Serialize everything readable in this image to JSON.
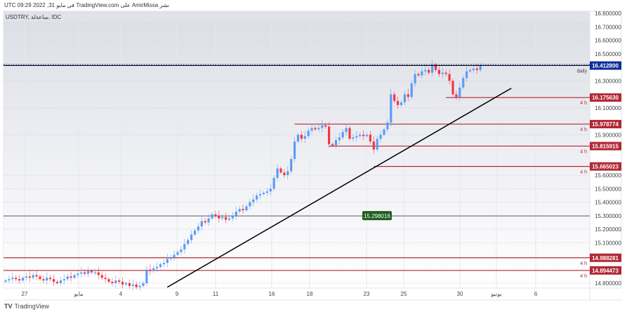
{
  "header": {
    "published_line": "UTC في مايو 31, 2022 09:29 TradingView.com على AmirMissa نشر"
  },
  "symbol_bar": {
    "label": "USDTRY, ساعةلة, IDC"
  },
  "footer": {
    "brand": "TradingView"
  },
  "colors": {
    "up": "#5b9cf6",
    "down": "#f23645",
    "level": "#b22833",
    "last_price": "#0d2d9b",
    "support": "#1e5e20",
    "trend": "#000000"
  },
  "chart_data": {
    "type": "candlestick",
    "ylim": [
      14.75,
      16.85
    ],
    "y_ticks": [
      "16.800000",
      "16.700000",
      "16.600000",
      "16.500000",
      "16.300000",
      "16.100000",
      "15.900000",
      "15.600000",
      "15.500000",
      "15.400000",
      "15.300000",
      "15.200000",
      "15.100000",
      "14.800000"
    ],
    "x_ticks": [
      "27",
      "مايو",
      "4",
      "9",
      "11",
      "16",
      "18",
      "23",
      "25",
      "30",
      "يونيو",
      "6"
    ],
    "closes": [
      14.82,
      14.83,
      14.84,
      14.83,
      14.82,
      14.84,
      14.85,
      14.84,
      14.86,
      14.85,
      14.83,
      14.82,
      14.84,
      14.83,
      14.81,
      14.8,
      14.82,
      14.83,
      14.85,
      14.84,
      14.86,
      14.87,
      14.88,
      14.87,
      14.89,
      14.88,
      14.88,
      14.86,
      14.84,
      14.83,
      14.81,
      14.8,
      14.82,
      14.81,
      14.79,
      14.8,
      14.78,
      14.79,
      14.77,
      14.78,
      14.8,
      14.9,
      14.89,
      14.91,
      14.92,
      14.94,
      14.95,
      14.98,
      14.99,
      15.01,
      15.03,
      15.05,
      15.09,
      15.12,
      15.16,
      15.19,
      15.22,
      15.26,
      15.25,
      15.28,
      15.31,
      15.3,
      15.28,
      15.29,
      15.27,
      15.28,
      15.3,
      15.33,
      15.35,
      15.34,
      15.37,
      15.4,
      15.42,
      15.45,
      15.46,
      15.47,
      15.48,
      15.5,
      15.58,
      15.65,
      15.62,
      15.6,
      15.63,
      15.72,
      15.85,
      15.9,
      15.87,
      15.89,
      15.93,
      15.95,
      15.94,
      15.95,
      15.97,
      15.96,
      15.83,
      15.82,
      15.86,
      15.88,
      15.92,
      15.95,
      15.87,
      15.88,
      15.89,
      15.9,
      15.89,
      15.9,
      15.85,
      15.79,
      15.87,
      15.9,
      15.94,
      15.99,
      16.2,
      16.15,
      16.12,
      16.14,
      16.2,
      16.18,
      16.28,
      16.35,
      16.34,
      16.37,
      16.38,
      16.36,
      16.42,
      16.38,
      16.35,
      16.36,
      16.35,
      16.3,
      16.2,
      16.18,
      16.25,
      16.32,
      16.37,
      16.38,
      16.39,
      16.38,
      16.41
    ],
    "last_price": {
      "value": "16.412800",
      "label": "daily"
    },
    "levels": [
      {
        "value": "16.175630",
        "tag": "4 h",
        "from_candle": 128
      },
      {
        "value": "15.978774",
        "tag": "4 h",
        "from_candle": 84
      },
      {
        "value": "15.815915",
        "tag": "4 h",
        "from_candle": 94
      },
      {
        "value": "15.665023",
        "tag": "4 h",
        "from_candle": 107
      },
      {
        "value": "14.988281",
        "tag": "4 h",
        "from_candle": 0
      },
      {
        "value": "14.894473",
        "tag": "4 h",
        "from_candle": 0
      }
    ],
    "support": {
      "value": "15.298016"
    },
    "trendline": {
      "from": {
        "candle": 47,
        "price": 14.77
      },
      "to": {
        "candle": 147,
        "price": 16.245
      }
    }
  }
}
